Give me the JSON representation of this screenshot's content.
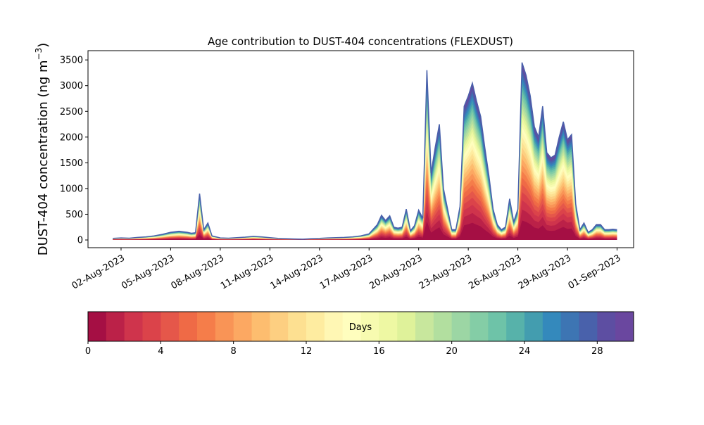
{
  "chart_data": {
    "type": "area",
    "title": "Age contribution to DUST-404 concentrations (FLEXDUST)",
    "ylabel": "DUST-404 concentration (ng m",
    "ylabel_sup": "−3",
    "ylabel_close": ")",
    "xlabel": "",
    "ylim": [
      -150,
      3680
    ],
    "yticks": [
      0,
      500,
      1000,
      1500,
      2000,
      2500,
      3000,
      3500
    ],
    "xlim": [
      "2023-07-31",
      "2023-09-02"
    ],
    "xticks": [
      "2023-08-02",
      "2023-08-05",
      "2023-08-08",
      "2023-08-11",
      "2023-08-14",
      "2023-08-17",
      "2023-08-20",
      "2023-08-23",
      "2023-08-26",
      "2023-08-29",
      "2023-09-01"
    ],
    "xtick_labels": [
      "02-Aug-2023",
      "05-Aug-2023",
      "08-Aug-2023",
      "11-Aug-2023",
      "14-Aug-2023",
      "17-Aug-2023",
      "20-Aug-2023",
      "23-Aug-2023",
      "26-Aug-2023",
      "29-Aug-2023",
      "01-Sep-2023"
    ],
    "grid": false,
    "series_note_layers": 30,
    "total": {
      "dates": [
        "2023-08-01T12",
        "2023-08-02T00",
        "2023-08-02T12",
        "2023-08-03T00",
        "2023-08-03T12",
        "2023-08-04T00",
        "2023-08-04T12",
        "2023-08-05T00",
        "2023-08-05T12",
        "2023-08-06T00",
        "2023-08-06T06",
        "2023-08-06T12",
        "2023-08-06T18",
        "2023-08-07T00",
        "2023-08-07T06",
        "2023-08-07T12",
        "2023-08-08T00",
        "2023-08-08T12",
        "2023-08-09T00",
        "2023-08-09T12",
        "2023-08-10T00",
        "2023-08-10T12",
        "2023-08-11T00",
        "2023-08-11T12",
        "2023-08-12T00",
        "2023-08-12T12",
        "2023-08-13T00",
        "2023-08-13T12",
        "2023-08-14T00",
        "2023-08-14T12",
        "2023-08-15T00",
        "2023-08-15T12",
        "2023-08-16T00",
        "2023-08-16T12",
        "2023-08-17T00",
        "2023-08-17T12",
        "2023-08-17T18",
        "2023-08-18T00",
        "2023-08-18T06",
        "2023-08-18T12",
        "2023-08-18T18",
        "2023-08-19T00",
        "2023-08-19T06",
        "2023-08-19T12",
        "2023-08-19T18",
        "2023-08-20T00",
        "2023-08-20T06",
        "2023-08-20T12",
        "2023-08-20T18",
        "2023-08-21T00",
        "2023-08-21T06",
        "2023-08-21T12",
        "2023-08-21T18",
        "2023-08-22T00",
        "2023-08-22T06",
        "2023-08-22T12",
        "2023-08-22T18",
        "2023-08-23T00",
        "2023-08-23T06",
        "2023-08-23T12",
        "2023-08-23T18",
        "2023-08-24T00",
        "2023-08-24T06",
        "2023-08-24T12",
        "2023-08-24T18",
        "2023-08-25T00",
        "2023-08-25T06",
        "2023-08-25T12",
        "2023-08-25T18",
        "2023-08-26T00",
        "2023-08-26T06",
        "2023-08-26T12",
        "2023-08-26T18",
        "2023-08-27T00",
        "2023-08-27T06",
        "2023-08-27T12",
        "2023-08-27T18",
        "2023-08-28T00",
        "2023-08-28T06",
        "2023-08-28T12",
        "2023-08-28T18",
        "2023-08-29T00",
        "2023-08-29T06",
        "2023-08-29T12",
        "2023-08-29T18",
        "2023-08-30T00",
        "2023-08-30T06",
        "2023-08-30T12",
        "2023-08-30T18",
        "2023-08-31T00",
        "2023-08-31T06",
        "2023-08-31T12",
        "2023-08-31T18",
        "2023-09-01T00"
      ],
      "values": [
        30,
        40,
        35,
        50,
        60,
        80,
        110,
        150,
        170,
        150,
        130,
        140,
        900,
        200,
        330,
        80,
        40,
        35,
        45,
        55,
        70,
        60,
        45,
        30,
        25,
        20,
        15,
        25,
        30,
        40,
        45,
        50,
        60,
        80,
        120,
        300,
        480,
        380,
        470,
        250,
        230,
        250,
        600,
        180,
        280,
        580,
        420,
        3300,
        1300,
        1800,
        2250,
        1000,
        600,
        200,
        200,
        650,
        2600,
        2800,
        3050,
        2700,
        2400,
        1800,
        1250,
        600,
        300,
        200,
        250,
        800,
        350,
        600,
        3450,
        3200,
        2800,
        2200,
        2000,
        2600,
        1700,
        1600,
        1650,
        2000,
        2300,
        1950,
        2050,
        700,
        200,
        330,
        150,
        200,
        300,
        300,
        200,
        200,
        210,
        200
      ]
    },
    "colorbar": {
      "label": "Days",
      "min": 0,
      "max": 30,
      "ticks": [
        0,
        4,
        8,
        12,
        16,
        20,
        24,
        28
      ],
      "colors": [
        "#a50f44",
        "#bb2148",
        "#cf344c",
        "#db434a",
        "#e5574a",
        "#ef6a46",
        "#f57d4a",
        "#f99456",
        "#fca862",
        "#fdbd6f",
        "#fdcf81",
        "#fde091",
        "#feeca0",
        "#fff7b4",
        "#fffebe",
        "#f7fbb0",
        "#eef8a3",
        "#dff29a",
        "#c8e79d",
        "#b2df9f",
        "#9cd6a4",
        "#84cda6",
        "#6ec3a8",
        "#57b2aa",
        "#439daf",
        "#3489bc",
        "#3d75b3",
        "#4961ab",
        "#5d4ea2",
        "#6a479f"
      ]
    }
  }
}
